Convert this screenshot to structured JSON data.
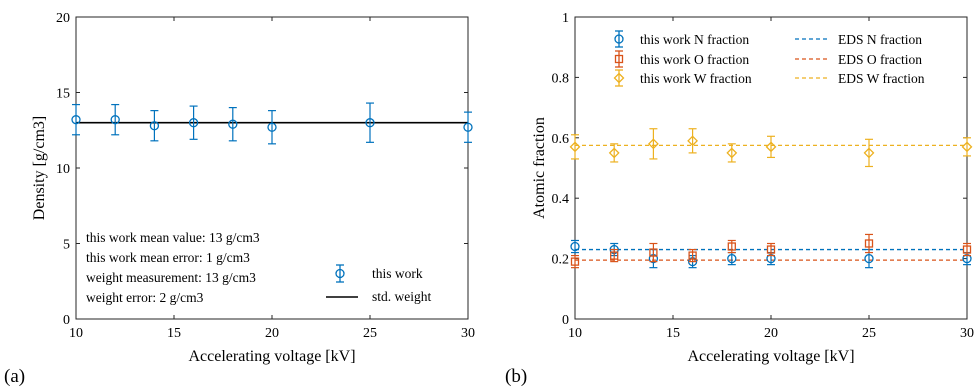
{
  "chart_data": [
    {
      "type": "scatter",
      "panel_label": "(a)",
      "xlabel": "Accelerating voltage [kV]",
      "ylabel": "Density [g/cm3]",
      "xlim": [
        10,
        30
      ],
      "ylim": [
        0,
        20
      ],
      "xticks": [
        "10",
        "15",
        "20",
        "25",
        "30"
      ],
      "yticks": [
        "0",
        "5",
        "10",
        "15",
        "20"
      ],
      "grid": false,
      "legend_position": "bottom-right",
      "series": [
        {
          "name": "this work",
          "marker": "circle",
          "color": "#0072BD",
          "x": [
            10,
            12,
            14,
            16,
            18,
            20,
            25,
            30
          ],
          "y": [
            13.2,
            13.2,
            12.8,
            13.0,
            12.9,
            12.7,
            13.0,
            12.7
          ],
          "err": [
            1.0,
            1.0,
            1.0,
            1.1,
            1.1,
            1.1,
            1.3,
            1.0
          ]
        },
        {
          "name": "std. weight",
          "style": "solid-line",
          "color": "#000000",
          "x": [
            10,
            30
          ],
          "y": [
            13.0,
            13.0
          ]
        }
      ],
      "annotations": [
        "this work mean value: 13 g/cm3",
        "this work mean error: 1 g/cm3",
        "weight measurement: 13 g/cm3",
        "weight error: 2 g/cm3"
      ]
    },
    {
      "type": "scatter",
      "panel_label": "(b)",
      "xlabel": "Accelerating voltage [kV]",
      "ylabel": "Atomic fraction",
      "xlim": [
        10,
        30
      ],
      "ylim": [
        0,
        1
      ],
      "xticks": [
        "10",
        "15",
        "20",
        "25",
        "30"
      ],
      "yticks": [
        "0",
        "0.2",
        "0.4",
        "0.6",
        "0.8",
        "1"
      ],
      "grid": false,
      "legend_position": "top",
      "series": [
        {
          "name": "this work N fraction",
          "marker": "circle",
          "color": "#0072BD",
          "x": [
            10,
            12,
            14,
            16,
            18,
            20,
            25,
            30
          ],
          "y": [
            0.24,
            0.23,
            0.2,
            0.19,
            0.2,
            0.2,
            0.2,
            0.2
          ],
          "err": [
            0.02,
            0.02,
            0.03,
            0.02,
            0.02,
            0.02,
            0.03,
            0.02
          ]
        },
        {
          "name": "this work O fraction",
          "marker": "square",
          "color": "#D95319",
          "x": [
            10,
            12,
            14,
            16,
            18,
            20,
            25,
            30
          ],
          "y": [
            0.19,
            0.21,
            0.22,
            0.21,
            0.24,
            0.23,
            0.25,
            0.23
          ],
          "err": [
            0.02,
            0.02,
            0.03,
            0.02,
            0.02,
            0.02,
            0.03,
            0.02
          ]
        },
        {
          "name": "this work W fraction",
          "marker": "diamond",
          "color": "#EDB120",
          "x": [
            10,
            12,
            14,
            16,
            18,
            20,
            25,
            30
          ],
          "y": [
            0.57,
            0.55,
            0.58,
            0.59,
            0.55,
            0.57,
            0.55,
            0.57
          ],
          "err": [
            0.04,
            0.03,
            0.05,
            0.04,
            0.03,
            0.035,
            0.045,
            0.03
          ]
        },
        {
          "name": "EDS N fraction",
          "style": "dashed-line",
          "color": "#0072BD",
          "x": [
            10,
            30
          ],
          "y": [
            0.23,
            0.23
          ]
        },
        {
          "name": "EDS O fraction",
          "style": "dashed-line",
          "color": "#D95319",
          "x": [
            10,
            30
          ],
          "y": [
            0.195,
            0.195
          ]
        },
        {
          "name": "EDS W fraction",
          "style": "dashed-line",
          "color": "#EDB120",
          "x": [
            10,
            30
          ],
          "y": [
            0.575,
            0.575
          ]
        }
      ]
    }
  ]
}
